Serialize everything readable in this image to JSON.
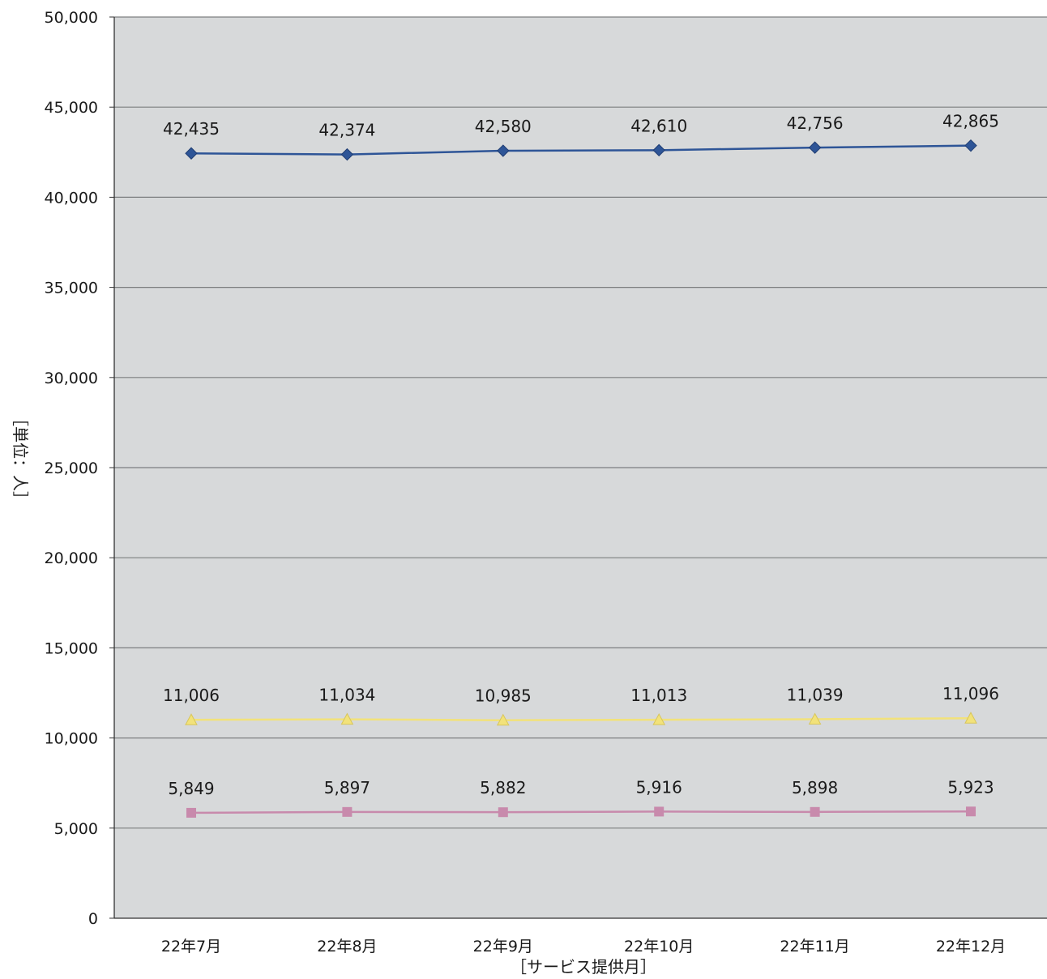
{
  "chart_data": {
    "type": "line",
    "categories": [
      "22年7月",
      "22年8月",
      "22年9月",
      "22年10月",
      "22年11月",
      "22年12月"
    ],
    "series": [
      {
        "values": [
          42435,
          42374,
          42580,
          42610,
          42756,
          42865
        ],
        "labels": [
          "42,435",
          "42,374",
          "42,580",
          "42,610",
          "42,756",
          "42,865"
        ],
        "color": "#2e5597",
        "marker": "diamond"
      },
      {
        "values": [
          11006,
          11034,
          10985,
          11013,
          11039,
          11096
        ],
        "labels": [
          "11,006",
          "11,034",
          "10,985",
          "11,013",
          "11,039",
          "11,096"
        ],
        "color": "#f2e27a",
        "marker": "triangle"
      },
      {
        "values": [
          5849,
          5897,
          5882,
          5916,
          5898,
          5923
        ],
        "labels": [
          "5,849",
          "5,897",
          "5,882",
          "5,916",
          "5,898",
          "5,923"
        ],
        "color": "#c88aac",
        "marker": "square"
      }
    ],
    "xlabel": "［サービス提供月］",
    "ylabel": "［単位：人］",
    "ylim": [
      0,
      50000
    ],
    "yticks": [
      0,
      5000,
      10000,
      15000,
      20000,
      25000,
      30000,
      35000,
      40000,
      45000,
      50000
    ],
    "ytick_labels": [
      "0",
      "5,000",
      "10,000",
      "15,000",
      "20,000",
      "25,000",
      "30,000",
      "35,000",
      "40,000",
      "45,000",
      "50,000"
    ],
    "grid": true,
    "plot_background": "#d7d9da",
    "gridline_color": "#7d7f80"
  }
}
